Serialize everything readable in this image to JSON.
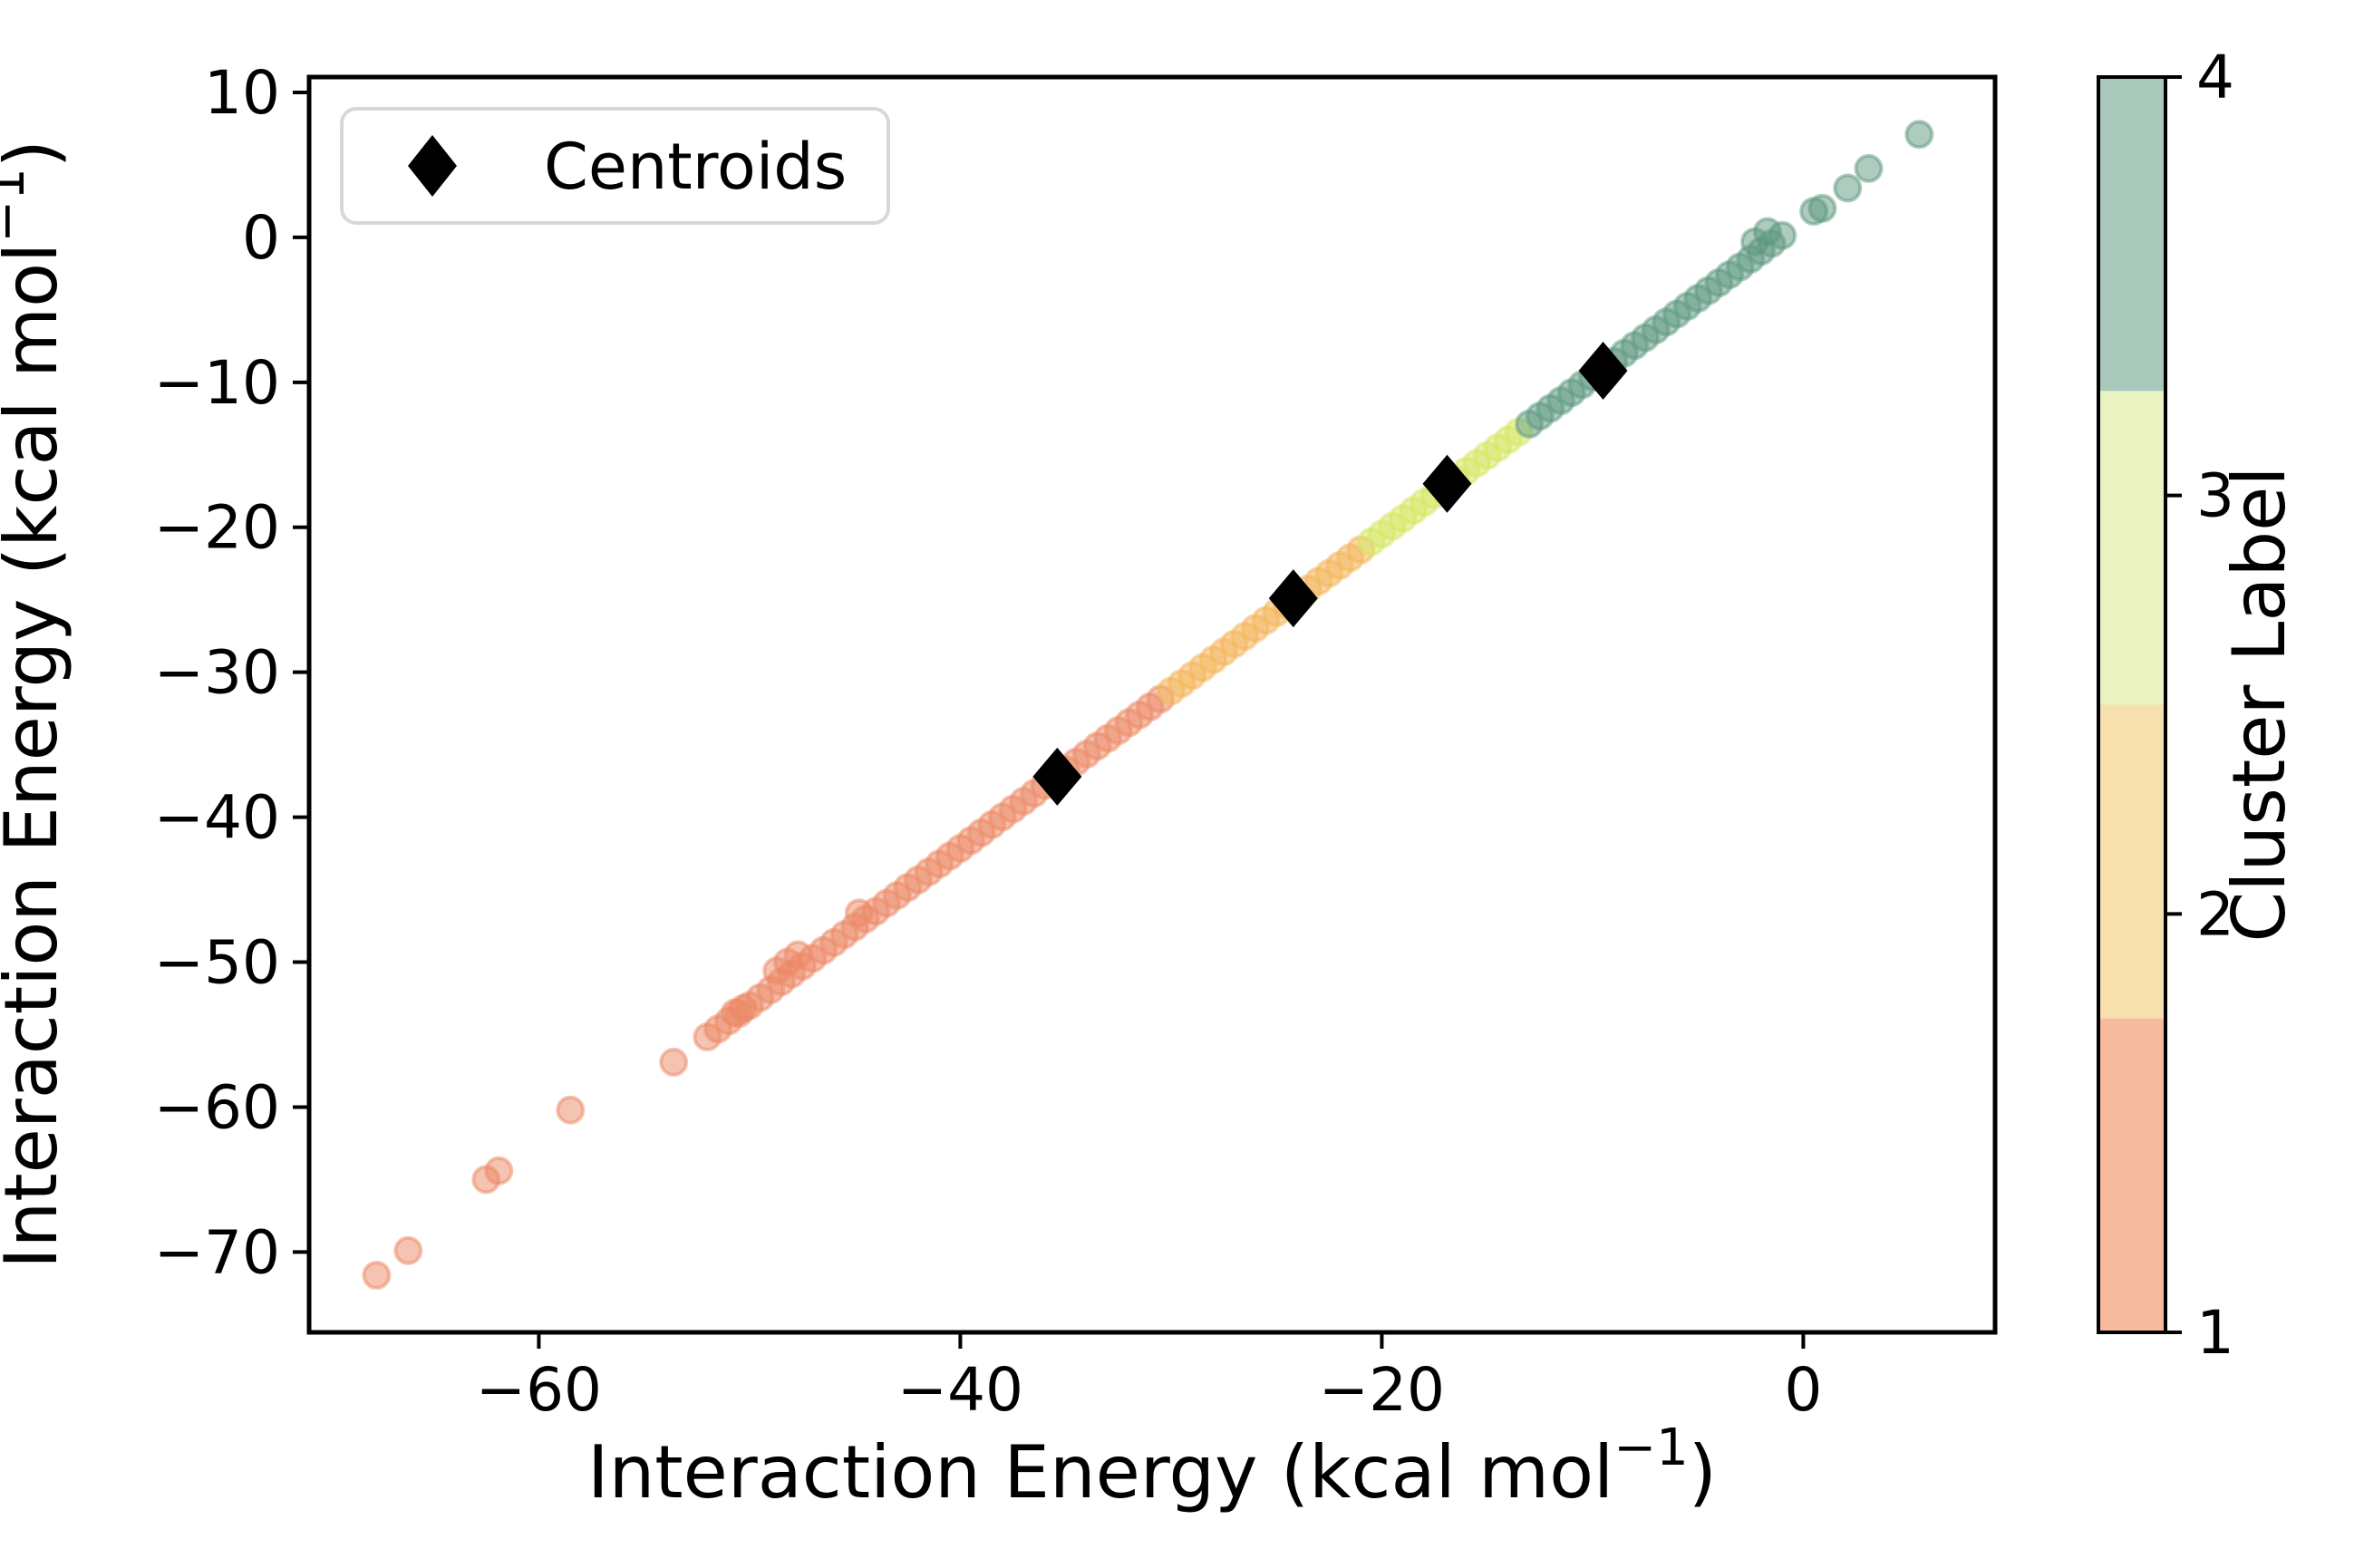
{
  "chart_data": {
    "type": "scatter",
    "title": "",
    "xlabel": {
      "pre": "Interaction Energy (kcal mol",
      "sup": "−1",
      "post": ")"
    },
    "ylabel": {
      "pre": "Interaction Energy (kcal mol",
      "sup": "−1",
      "post": ")"
    },
    "xlim": [
      -70.9,
      9.1
    ],
    "ylim": [
      -75.54,
      11.06
    ],
    "x_axis": {
      "tick_values": [
        -60,
        -40,
        -20,
        0
      ],
      "tick_labels": [
        "−60",
        "−40",
        "−20",
        "0"
      ]
    },
    "y_axis": {
      "tick_values": [
        10,
        0,
        -10,
        -20,
        -30,
        -40,
        -50,
        -60,
        -70
      ],
      "tick_labels": [
        "10",
        "0",
        "−10",
        "−20",
        "−30",
        "−40",
        "−50",
        "−60",
        "−70"
      ]
    },
    "legend": {
      "text": "Centroids",
      "marker": "black-diamond"
    },
    "colorbar": {
      "label": "Cluster Label",
      "ticks": [
        "4",
        "3",
        "2",
        "1"
      ],
      "colors": [
        "#a9c8bc",
        "#e9f2c0",
        "#f8dfae",
        "#f6bb9e"
      ]
    },
    "cluster_colors": {
      "1": "#ec8764",
      "2": "#f3b355",
      "3": "#d6e660",
      "4": "#5c987e"
    },
    "centroids": [
      [
        -35.4,
        -37.2
      ],
      [
        -24.2,
        -24.9
      ],
      [
        -16.9,
        -17.0
      ],
      [
        -9.5,
        -9.2
      ]
    ],
    "points": [
      [
        -67.7,
        -71.6,
        1
      ],
      [
        -66.2,
        -69.9,
        1
      ],
      [
        -62.5,
        -65.0,
        1
      ],
      [
        -61.9,
        -64.4,
        1
      ],
      [
        -58.5,
        -60.2,
        1
      ],
      [
        -53.6,
        -56.9,
        1
      ],
      [
        -50.7,
        -53.5,
        1
      ],
      [
        -50.3,
        -53.2,
        1
      ],
      [
        -52,
        -55.16,
        1
      ],
      [
        -51.5,
        -54.62,
        1
      ],
      [
        -51,
        -54.07,
        1
      ],
      [
        -50.5,
        -53.53,
        1
      ],
      [
        -50,
        -52.99,
        1
      ],
      [
        -49.5,
        -52.45,
        1
      ],
      [
        -49,
        -51.91,
        1
      ],
      [
        -48.5,
        -51.36,
        1
      ],
      [
        -48,
        -50.82,
        1
      ],
      [
        -47.5,
        -50.28,
        1
      ],
      [
        -47,
        -49.74,
        1
      ],
      [
        -46.5,
        -49.2,
        1
      ],
      [
        -46,
        -48.65,
        1
      ],
      [
        -45.5,
        -48.11,
        1
      ],
      [
        -45,
        -47.57,
        1
      ],
      [
        -44.5,
        -47.03,
        1
      ],
      [
        -44,
        -46.49,
        1
      ],
      [
        -43.5,
        -45.94,
        1
      ],
      [
        -43,
        -45.4,
        1
      ],
      [
        -42.5,
        -44.86,
        1
      ],
      [
        -42,
        -44.32,
        1
      ],
      [
        -41.5,
        -43.78,
        1
      ],
      [
        -41,
        -43.23,
        1
      ],
      [
        -40.5,
        -42.69,
        1
      ],
      [
        -40,
        -42.15,
        1
      ],
      [
        -39.5,
        -41.61,
        1
      ],
      [
        -39,
        -41.07,
        1
      ],
      [
        -38.5,
        -40.52,
        1
      ],
      [
        -38,
        -39.98,
        1
      ],
      [
        -37.5,
        -39.44,
        1
      ],
      [
        -37,
        -38.9,
        1
      ],
      [
        -36.5,
        -38.36,
        1
      ],
      [
        -36,
        -37.81,
        1
      ],
      [
        -35.5,
        -37.27,
        1
      ],
      [
        -35,
        -36.73,
        1
      ],
      [
        -34.5,
        -36.19,
        1
      ],
      [
        -34,
        -35.65,
        1
      ],
      [
        -33.5,
        -35.1,
        1
      ],
      [
        -33,
        -34.56,
        1
      ],
      [
        -32.5,
        -34.02,
        1
      ],
      [
        -32,
        -33.48,
        1
      ],
      [
        -31.5,
        -32.94,
        1
      ],
      [
        -31,
        -32.39,
        1
      ],
      [
        -30.5,
        -31.85,
        1
      ],
      [
        -48.7,
        -50.6,
        1
      ],
      [
        -48.2,
        -50.0,
        1
      ],
      [
        -47.7,
        -49.5,
        1
      ],
      [
        -44.8,
        -46.6,
        1
      ],
      [
        -30,
        -31.31,
        2
      ],
      [
        -29.5,
        -30.77,
        2
      ],
      [
        -29,
        -30.23,
        2
      ],
      [
        -28.5,
        -29.68,
        2
      ],
      [
        -28,
        -29.14,
        2
      ],
      [
        -27.5,
        -28.6,
        2
      ],
      [
        -27,
        -28.06,
        2
      ],
      [
        -26.5,
        -27.52,
        2
      ],
      [
        -26,
        -26.97,
        2
      ],
      [
        -25.5,
        -26.43,
        2
      ],
      [
        -25,
        -25.89,
        2
      ],
      [
        -24.5,
        -25.35,
        2
      ],
      [
        -24,
        -24.81,
        2
      ],
      [
        -23.5,
        -24.26,
        2
      ],
      [
        -23,
        -23.72,
        2
      ],
      [
        -22.5,
        -23.18,
        2
      ],
      [
        -22,
        -22.64,
        2
      ],
      [
        -21.5,
        -22.1,
        2
      ],
      [
        -21,
        -21.55,
        2
      ],
      [
        -20.5,
        -21.01,
        3
      ],
      [
        -20,
        -20.47,
        3
      ],
      [
        -19.5,
        -19.93,
        3
      ],
      [
        -19,
        -19.39,
        3
      ],
      [
        -18.5,
        -18.84,
        3
      ],
      [
        -18,
        -18.3,
        3
      ],
      [
        -17.5,
        -17.76,
        3
      ],
      [
        -17,
        -17.22,
        3
      ],
      [
        -16.5,
        -16.68,
        3
      ],
      [
        -16,
        -16.13,
        3
      ],
      [
        -15.5,
        -15.59,
        3
      ],
      [
        -15,
        -15.05,
        3
      ],
      [
        -14.5,
        -14.51,
        3
      ],
      [
        -14,
        -13.97,
        3
      ],
      [
        -13.5,
        -13.42,
        3
      ],
      [
        -13,
        -12.88,
        4
      ],
      [
        -12.5,
        -12.34,
        4
      ],
      [
        -12,
        -11.8,
        4
      ],
      [
        -11.5,
        -11.26,
        4
      ],
      [
        -11,
        -10.71,
        4
      ],
      [
        -10.5,
        -10.17,
        4
      ],
      [
        -10,
        -9.63,
        4
      ],
      [
        -9.5,
        -9.09,
        4
      ],
      [
        -9,
        -8.55,
        4
      ],
      [
        -8.5,
        -8.0,
        4
      ],
      [
        -8,
        -7.46,
        4
      ],
      [
        -7.5,
        -6.92,
        4
      ],
      [
        -7,
        -6.38,
        4
      ],
      [
        -6.5,
        -5.84,
        4
      ],
      [
        -6,
        -5.29,
        4
      ],
      [
        -5.5,
        -4.75,
        4
      ],
      [
        -5,
        -4.21,
        4
      ],
      [
        -4.5,
        -3.67,
        4
      ],
      [
        -4,
        -3.13,
        4
      ],
      [
        -3.5,
        -2.58,
        4
      ],
      [
        -3,
        -2.04,
        4
      ],
      [
        -2.5,
        -1.5,
        4
      ],
      [
        -2,
        -0.96,
        4
      ],
      [
        -1.5,
        -0.42,
        4
      ],
      [
        -1,
        0.13,
        4
      ],
      [
        -2.3,
        -0.3,
        4
      ],
      [
        -1.7,
        0.4,
        4
      ],
      [
        0.5,
        1.8,
        4
      ],
      [
        0.9,
        2.0,
        4
      ],
      [
        2.1,
        3.4,
        4
      ],
      [
        3.1,
        4.75,
        4
      ],
      [
        5.5,
        7.1,
        4
      ]
    ]
  }
}
